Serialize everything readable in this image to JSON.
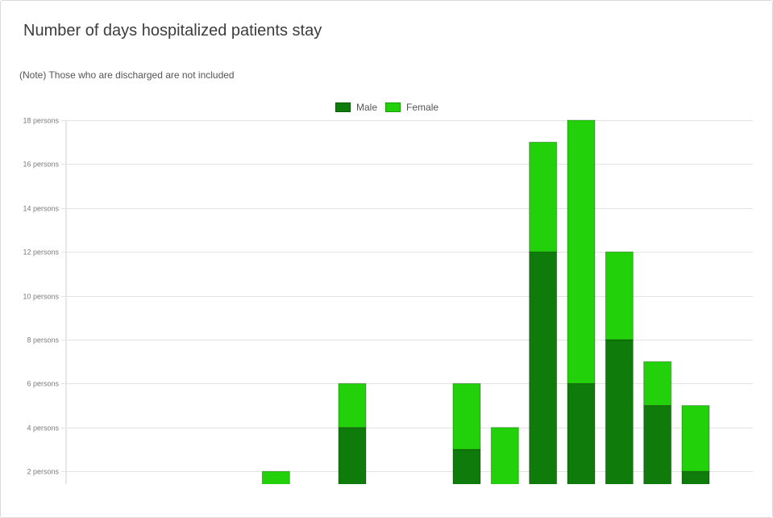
{
  "header": {
    "title": "Number of days hospitalized patients stay",
    "note": "(Note) Those who are discharged are not included"
  },
  "colors": {
    "male": "#0f7b0a",
    "female": "#22d10a",
    "grid": "#e3e3e3",
    "axis": "#cfcfcf"
  },
  "chart_data": {
    "type": "bar",
    "stacked": true,
    "title": "Number of days hospitalized patients stay",
    "note": "(Note) Those who are discharged are not included",
    "legend": [
      "Male",
      "Female"
    ],
    "legend_position": "top-center",
    "grid": true,
    "ylim": [
      0,
      18
    ],
    "y_ticks": [
      {
        "value": 2,
        "label": "2 persons"
      },
      {
        "value": 4,
        "label": "4 persons"
      },
      {
        "value": 6,
        "label": "6 persons"
      },
      {
        "value": 8,
        "label": "8 persons"
      },
      {
        "value": 10,
        "label": "10 persons"
      },
      {
        "value": 12,
        "label": "12 persons"
      },
      {
        "value": 14,
        "label": "14 persons"
      },
      {
        "value": 16,
        "label": "16 persons"
      },
      {
        "value": 18,
        "label": "18 persons"
      }
    ],
    "slot_count": 18,
    "series": [
      {
        "name": "Male",
        "values": [
          0,
          0,
          0,
          0,
          0,
          0,
          0,
          4,
          0,
          0,
          3,
          0,
          12,
          6,
          8,
          5,
          2,
          0
        ]
      },
      {
        "name": "Female",
        "values": [
          0,
          0,
          0,
          0,
          0,
          2,
          0,
          2,
          0,
          0,
          3,
          4,
          5,
          12,
          4,
          2,
          3,
          0
        ]
      }
    ]
  }
}
